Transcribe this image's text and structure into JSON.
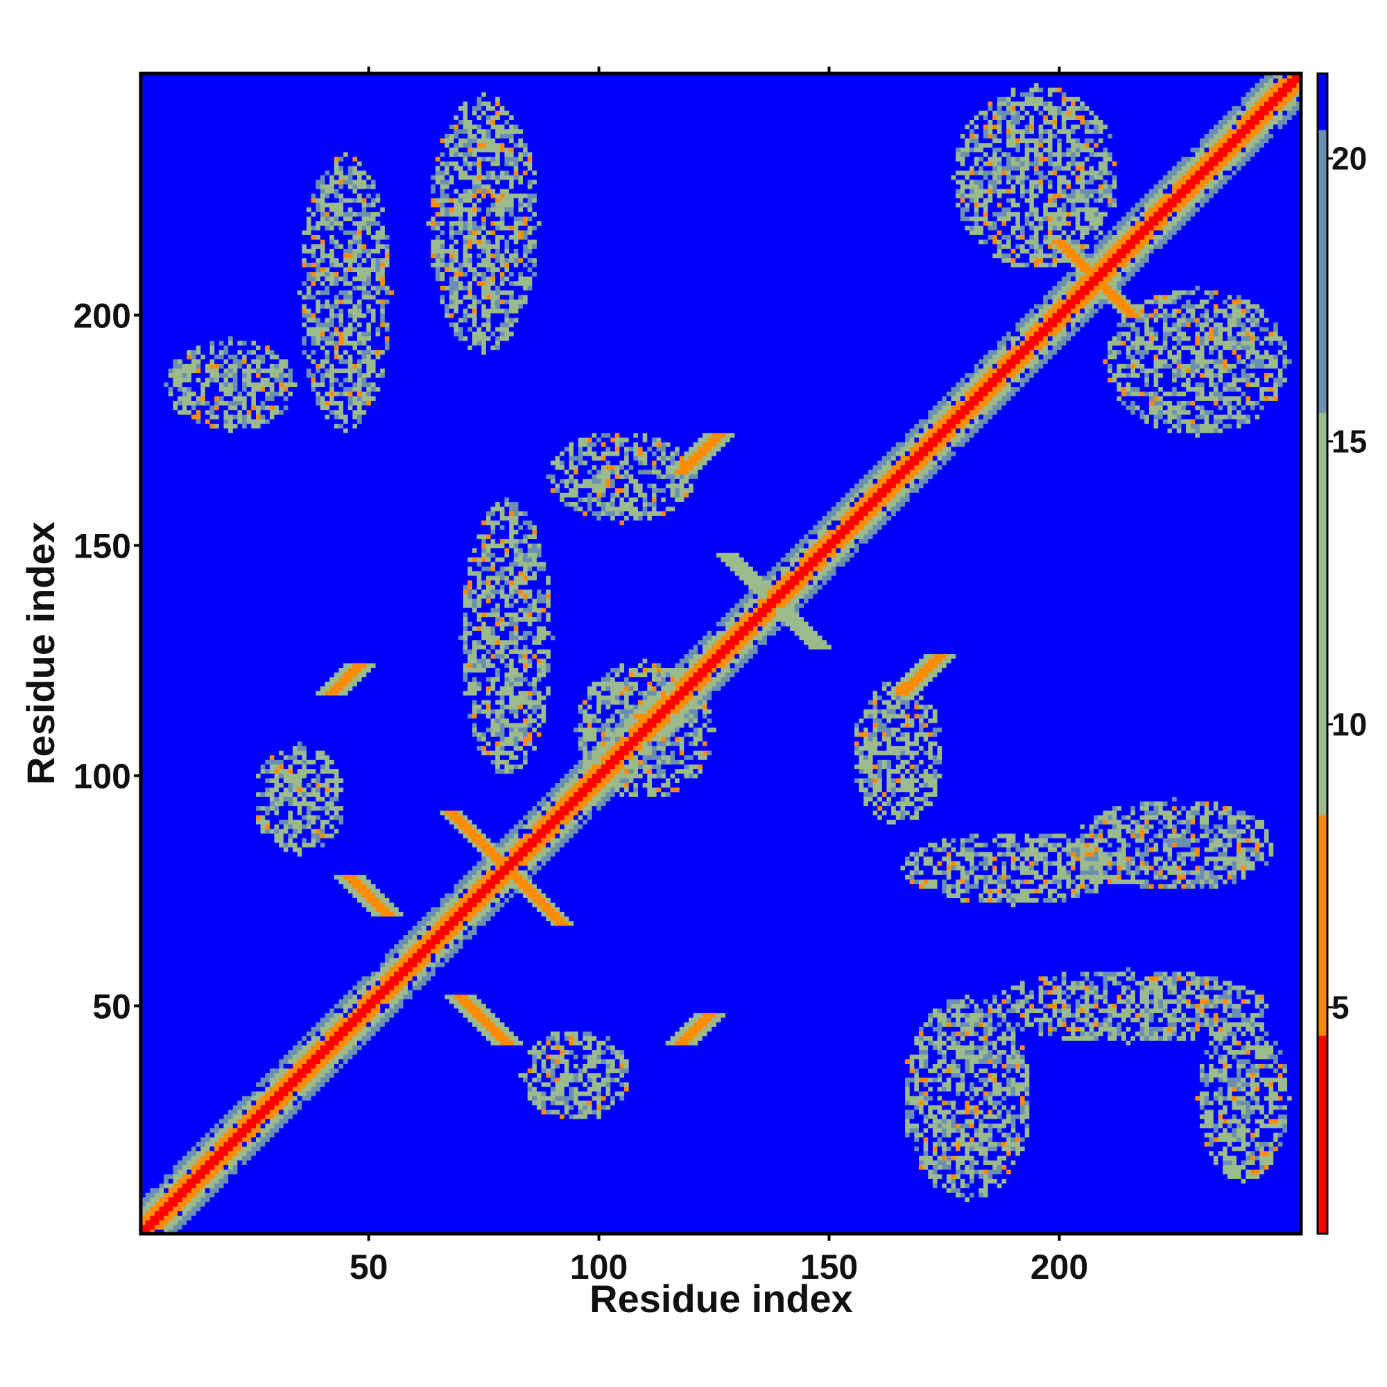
{
  "chart_data": {
    "type": "heatmap",
    "title": "",
    "xlabel": "Residue index",
    "ylabel": "Residue index",
    "xlim": [
      1,
      252
    ],
    "ylim": [
      1,
      252
    ],
    "x_ticks": [
      50,
      100,
      150,
      200
    ],
    "y_ticks": [
      50,
      100,
      150,
      200
    ],
    "x_tick_labels": [
      "50",
      "100",
      "150",
      "200"
    ],
    "y_tick_labels": [
      "50",
      "100",
      "150",
      "200"
    ],
    "colorbar": {
      "range": [
        1,
        21.5
      ],
      "ticks": [
        5,
        10,
        15,
        20
      ],
      "tick_labels": [
        "5",
        "10",
        "15",
        "20"
      ],
      "colors": [
        {
          "from": 1,
          "to": 4.5,
          "color": "#ff0000"
        },
        {
          "from": 4.5,
          "to": 8.4,
          "color": "#ff8c00"
        },
        {
          "from": 8.4,
          "to": 15.5,
          "color": "#9bbb8c"
        },
        {
          "from": 15.5,
          "to": 20.5,
          "color": "#6b8fb0"
        },
        {
          "from": 20.5,
          "to": 21.5,
          "color": "#0000ff"
        }
      ]
    },
    "background_value": 21,
    "features": [
      {
        "kind": "diagonal",
        "from": 1,
        "to": 252
      },
      {
        "kind": "antidiagonal",
        "center": [
          138,
          138
        ],
        "half_length": 10,
        "value": 11
      },
      {
        "kind": "antidiagonal",
        "center": [
          208,
          208
        ],
        "half_length": 8,
        "value": 6
      },
      {
        "kind": "antidiagonal",
        "center": [
          80,
          80
        ],
        "half_length": 12,
        "value": 6
      },
      {
        "kind": "parallel",
        "from": [
          46,
          78
        ],
        "to": [
          54,
          70
        ],
        "value": 6
      },
      {
        "kind": "parallel",
        "from": [
          70,
          52
        ],
        "to": [
          80,
          42
        ],
        "value": 6
      },
      {
        "kind": "parallel",
        "from": [
          42,
          118
        ],
        "to": [
          48,
          124
        ],
        "value": 6
      },
      {
        "kind": "parallel",
        "from": [
          118,
          42
        ],
        "to": [
          124,
          48
        ],
        "value": 6
      },
      {
        "kind": "parallel",
        "from": [
          118,
          166
        ],
        "to": [
          126,
          174
        ],
        "value": 6
      },
      {
        "kind": "parallel",
        "from": [
          166,
          118
        ],
        "to": [
          174,
          126
        ],
        "value": 6
      },
      {
        "kind": "blob",
        "center": [
          20,
          185
        ],
        "radius": [
          14,
          10
        ],
        "value": 11
      },
      {
        "kind": "blob",
        "center": [
          45,
          205
        ],
        "radius": [
          10,
          30
        ],
        "value": 11
      },
      {
        "kind": "blob",
        "center": [
          75,
          220
        ],
        "radius": [
          12,
          28
        ],
        "value": 11
      },
      {
        "kind": "blob",
        "center": [
          180,
          30
        ],
        "radius": [
          14,
          22
        ],
        "value": 11
      },
      {
        "kind": "blob",
        "center": [
          215,
          50
        ],
        "radius": [
          30,
          8
        ],
        "value": 11
      },
      {
        "kind": "blob",
        "center": [
          240,
          30
        ],
        "radius": [
          10,
          18
        ],
        "value": 11
      },
      {
        "kind": "blob",
        "center": [
          190,
          80
        ],
        "radius": [
          24,
          8
        ],
        "value": 11
      },
      {
        "kind": "blob",
        "center": [
          225,
          85
        ],
        "radius": [
          22,
          10
        ],
        "value": 11
      },
      {
        "kind": "blob",
        "center": [
          105,
          165
        ],
        "radius": [
          16,
          10
        ],
        "value": 11
      },
      {
        "kind": "blob",
        "center": [
          165,
          105
        ],
        "radius": [
          10,
          16
        ],
        "value": 11
      },
      {
        "kind": "blob",
        "center": [
          95,
          35
        ],
        "radius": [
          12,
          10
        ],
        "value": 11
      },
      {
        "kind": "blob",
        "center": [
          35,
          95
        ],
        "radius": [
          10,
          12
        ],
        "value": 11
      },
      {
        "kind": "blob",
        "center": [
          195,
          230
        ],
        "radius": [
          18,
          20
        ],
        "value": 11
      },
      {
        "kind": "blob",
        "center": [
          230,
          190
        ],
        "radius": [
          20,
          16
        ],
        "value": 11
      },
      {
        "kind": "blob",
        "center": [
          80,
          130
        ],
        "radius": [
          10,
          30
        ],
        "value": 11
      },
      {
        "kind": "blob",
        "center": [
          110,
          110
        ],
        "radius": [
          15,
          15
        ],
        "value": 11
      }
    ]
  }
}
